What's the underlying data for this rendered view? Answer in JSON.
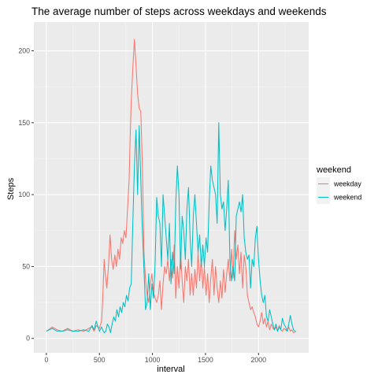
{
  "chart_data": {
    "type": "line",
    "title": "The average number of steps across weekdays and weekends",
    "xlabel": "interval",
    "ylabel": "Steps",
    "xlim": [
      -118,
      2473
    ],
    "ylim": [
      -10,
      220
    ],
    "x_ticks": [
      0,
      500,
      1000,
      1500,
      2000
    ],
    "x_tick_labels": [
      "0",
      "500",
      "1000",
      "1500",
      "2000"
    ],
    "y_ticks": [
      0,
      50,
      100,
      150,
      200
    ],
    "y_tick_labels": [
      "0",
      "50",
      "100",
      "150",
      "200"
    ],
    "grid": true,
    "legend": {
      "title": "weekend",
      "position": "right"
    },
    "series": [
      {
        "name": "weekday",
        "color": "#F8766D",
        "points": [
          [
            0,
            5
          ],
          [
            55,
            8
          ],
          [
            100,
            6
          ],
          [
            150,
            5
          ],
          [
            200,
            7
          ],
          [
            250,
            5
          ],
          [
            300,
            6
          ],
          [
            350,
            5
          ],
          [
            400,
            7
          ],
          [
            430,
            8
          ],
          [
            450,
            5
          ],
          [
            470,
            9
          ],
          [
            500,
            7
          ],
          [
            520,
            12
          ],
          [
            530,
            25
          ],
          [
            545,
            55
          ],
          [
            555,
            45
          ],
          [
            570,
            35
          ],
          [
            585,
            50
          ],
          [
            600,
            72
          ],
          [
            615,
            55
          ],
          [
            630,
            48
          ],
          [
            645,
            58
          ],
          [
            660,
            50
          ],
          [
            675,
            62
          ],
          [
            690,
            55
          ],
          [
            705,
            70
          ],
          [
            720,
            66
          ],
          [
            735,
            75
          ],
          [
            750,
            70
          ],
          [
            765,
            90
          ],
          [
            780,
            110
          ],
          [
            790,
            140
          ],
          [
            800,
            165
          ],
          [
            815,
            188
          ],
          [
            830,
            208
          ],
          [
            845,
            190
          ],
          [
            860,
            170
          ],
          [
            875,
            160
          ],
          [
            890,
            158
          ],
          [
            905,
            120
          ],
          [
            920,
            60
          ],
          [
            935,
            40
          ],
          [
            950,
            30
          ],
          [
            965,
            25
          ],
          [
            980,
            38
          ],
          [
            995,
            45
          ],
          [
            1010,
            32
          ],
          [
            1025,
            28
          ],
          [
            1040,
            25
          ],
          [
            1055,
            30
          ],
          [
            1070,
            40
          ],
          [
            1085,
            20
          ],
          [
            1100,
            38
          ],
          [
            1115,
            50
          ],
          [
            1130,
            45
          ],
          [
            1145,
            55
          ],
          [
            1160,
            40
          ],
          [
            1175,
            55
          ],
          [
            1190,
            42
          ],
          [
            1205,
            65
          ],
          [
            1220,
            28
          ],
          [
            1235,
            50
          ],
          [
            1250,
            35
          ],
          [
            1265,
            60
          ],
          [
            1280,
            40
          ],
          [
            1295,
            25
          ],
          [
            1310,
            50
          ],
          [
            1325,
            40
          ],
          [
            1340,
            55
          ],
          [
            1355,
            30
          ],
          [
            1370,
            45
          ],
          [
            1385,
            30
          ],
          [
            1400,
            48
          ],
          [
            1415,
            35
          ],
          [
            1430,
            60
          ],
          [
            1445,
            40
          ],
          [
            1460,
            55
          ],
          [
            1475,
            35
          ],
          [
            1490,
            50
          ],
          [
            1505,
            30
          ],
          [
            1520,
            45
          ],
          [
            1535,
            25
          ],
          [
            1550,
            42
          ],
          [
            1565,
            55
          ],
          [
            1580,
            30
          ],
          [
            1595,
            50
          ],
          [
            1610,
            35
          ],
          [
            1625,
            25
          ],
          [
            1640,
            40
          ],
          [
            1655,
            28
          ],
          [
            1670,
            48
          ],
          [
            1685,
            32
          ],
          [
            1700,
            45
          ],
          [
            1715,
            55
          ],
          [
            1730,
            40
          ],
          [
            1745,
            62
          ],
          [
            1760,
            42
          ],
          [
            1775,
            75
          ],
          [
            1790,
            55
          ],
          [
            1805,
            65
          ],
          [
            1820,
            45
          ],
          [
            1835,
            60
          ],
          [
            1850,
            35
          ],
          [
            1865,
            58
          ],
          [
            1880,
            50
          ],
          [
            1895,
            30
          ],
          [
            1910,
            25
          ],
          [
            1925,
            20
          ],
          [
            1940,
            22
          ],
          [
            1955,
            18
          ],
          [
            1970,
            15
          ],
          [
            1985,
            10
          ],
          [
            2000,
            8
          ],
          [
            2015,
            12
          ],
          [
            2030,
            18
          ],
          [
            2045,
            10
          ],
          [
            2060,
            14
          ],
          [
            2075,
            8
          ],
          [
            2090,
            12
          ],
          [
            2105,
            6
          ],
          [
            2120,
            10
          ],
          [
            2135,
            7
          ],
          [
            2150,
            6
          ],
          [
            2165,
            8
          ],
          [
            2180,
            5
          ],
          [
            2195,
            9
          ],
          [
            2210,
            6
          ],
          [
            2225,
            5
          ],
          [
            2240,
            7
          ],
          [
            2255,
            6
          ],
          [
            2270,
            5
          ],
          [
            2285,
            8
          ],
          [
            2300,
            5
          ],
          [
            2315,
            6
          ],
          [
            2330,
            4
          ],
          [
            2355,
            5
          ]
        ]
      },
      {
        "name": "weekend",
        "color": "#00BFC4",
        "points": [
          [
            0,
            5
          ],
          [
            55,
            7
          ],
          [
            100,
            5
          ],
          [
            150,
            5
          ],
          [
            200,
            6
          ],
          [
            250,
            5
          ],
          [
            300,
            5
          ],
          [
            350,
            6
          ],
          [
            400,
            5
          ],
          [
            430,
            9
          ],
          [
            450,
            6
          ],
          [
            470,
            12
          ],
          [
            500,
            5
          ],
          [
            520,
            8
          ],
          [
            530,
            6
          ],
          [
            545,
            4
          ],
          [
            560,
            5
          ],
          [
            575,
            10
          ],
          [
            590,
            8
          ],
          [
            605,
            4
          ],
          [
            620,
            10
          ],
          [
            635,
            15
          ],
          [
            650,
            12
          ],
          [
            665,
            20
          ],
          [
            680,
            15
          ],
          [
            695,
            22
          ],
          [
            710,
            18
          ],
          [
            725,
            25
          ],
          [
            740,
            22
          ],
          [
            755,
            30
          ],
          [
            770,
            26
          ],
          [
            785,
            35
          ],
          [
            800,
            38
          ],
          [
            815,
            80
          ],
          [
            830,
            120
          ],
          [
            845,
            145
          ],
          [
            860,
            100
          ],
          [
            875,
            148
          ],
          [
            890,
            110
          ],
          [
            905,
            75
          ],
          [
            920,
            48
          ],
          [
            935,
            20
          ],
          [
            950,
            25
          ],
          [
            965,
            45
          ],
          [
            980,
            20
          ],
          [
            995,
            38
          ],
          [
            1010,
            28
          ],
          [
            1025,
            52
          ],
          [
            1040,
            98
          ],
          [
            1055,
            85
          ],
          [
            1070,
            80
          ],
          [
            1085,
            50
          ],
          [
            1100,
            100
          ],
          [
            1115,
            85
          ],
          [
            1130,
            70
          ],
          [
            1145,
            55
          ],
          [
            1160,
            80
          ],
          [
            1175,
            38
          ],
          [
            1190,
            60
          ],
          [
            1205,
            45
          ],
          [
            1220,
            95
          ],
          [
            1235,
            120
          ],
          [
            1250,
            100
          ],
          [
            1265,
            48
          ],
          [
            1280,
            85
          ],
          [
            1295,
            75
          ],
          [
            1310,
            55
          ],
          [
            1325,
            90
          ],
          [
            1340,
            105
          ],
          [
            1355,
            70
          ],
          [
            1370,
            50
          ],
          [
            1385,
            85
          ],
          [
            1400,
            100
          ],
          [
            1415,
            80
          ],
          [
            1430,
            60
          ],
          [
            1445,
            72
          ],
          [
            1460,
            50
          ],
          [
            1475,
            65
          ],
          [
            1490,
            50
          ],
          [
            1505,
            70
          ],
          [
            1520,
            60
          ],
          [
            1535,
            95
          ],
          [
            1550,
            120
          ],
          [
            1565,
            110
          ],
          [
            1580,
            105
          ],
          [
            1595,
            100
          ],
          [
            1610,
            80
          ],
          [
            1625,
            150
          ],
          [
            1640,
            100
          ],
          [
            1655,
            90
          ],
          [
            1670,
            95
          ],
          [
            1685,
            75
          ],
          [
            1700,
            90
          ],
          [
            1715,
            110
          ],
          [
            1730,
            55
          ],
          [
            1745,
            40
          ],
          [
            1760,
            50
          ],
          [
            1775,
            40
          ],
          [
            1790,
            85
          ],
          [
            1805,
            90
          ],
          [
            1820,
            95
          ],
          [
            1835,
            88
          ],
          [
            1850,
            100
          ],
          [
            1865,
            70
          ],
          [
            1880,
            60
          ],
          [
            1895,
            55
          ],
          [
            1910,
            58
          ],
          [
            1925,
            35
          ],
          [
            1940,
            55
          ],
          [
            1955,
            50
          ],
          [
            1970,
            70
          ],
          [
            1985,
            78
          ],
          [
            2000,
            55
          ],
          [
            2015,
            40
          ],
          [
            2030,
            30
          ],
          [
            2045,
            25
          ],
          [
            2060,
            30
          ],
          [
            2075,
            15
          ],
          [
            2090,
            12
          ],
          [
            2105,
            20
          ],
          [
            2120,
            15
          ],
          [
            2135,
            10
          ],
          [
            2150,
            6
          ],
          [
            2165,
            10
          ],
          [
            2180,
            5
          ],
          [
            2195,
            8
          ],
          [
            2210,
            6
          ],
          [
            2225,
            14
          ],
          [
            2240,
            10
          ],
          [
            2255,
            8
          ],
          [
            2270,
            5
          ],
          [
            2285,
            10
          ],
          [
            2300,
            16
          ],
          [
            2315,
            10
          ],
          [
            2330,
            6
          ],
          [
            2345,
            5
          ]
        ]
      }
    ]
  }
}
